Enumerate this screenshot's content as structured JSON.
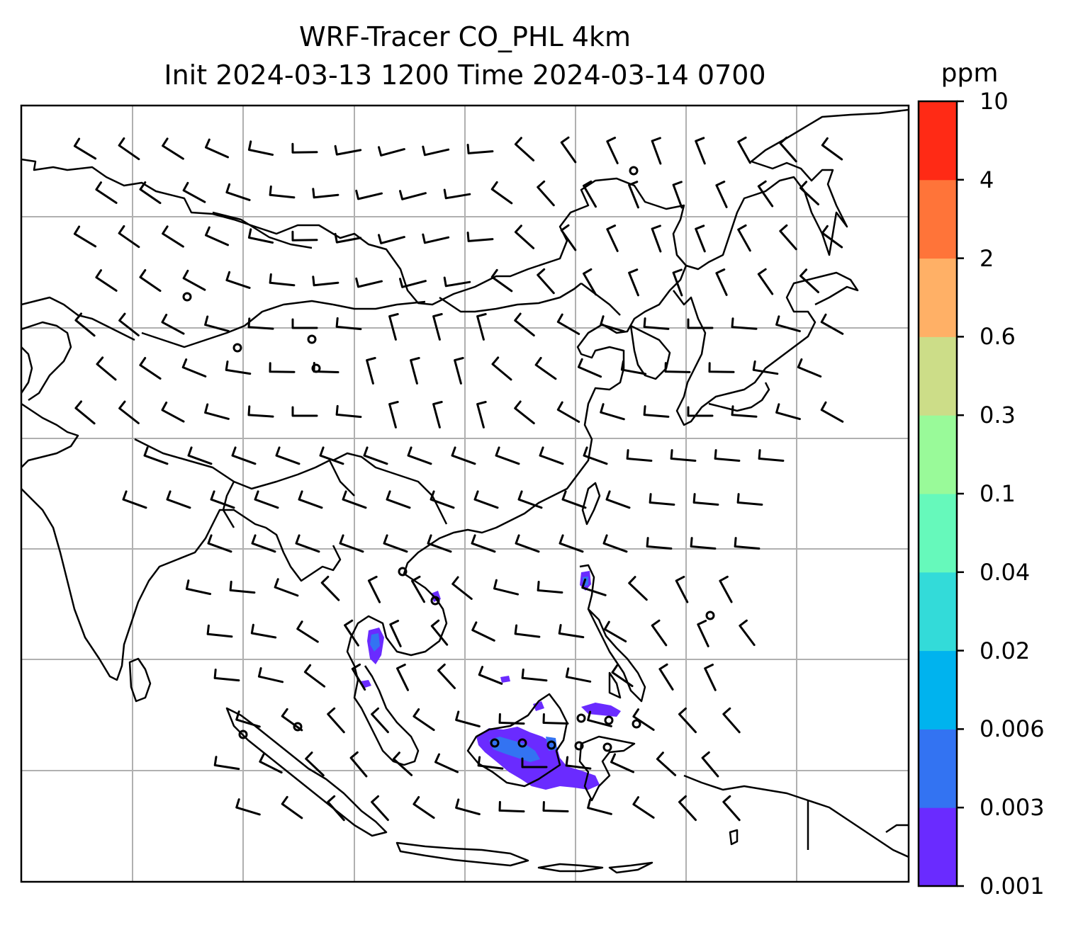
{
  "title": {
    "line1": "WRF-Tracer CO_PHL 4km",
    "line2": "Init 2024-03-13 1200 Time 2024-03-14 0700"
  },
  "colorbar": {
    "units": "ppm",
    "ticks": [
      "0.001",
      "0.003",
      "0.006",
      "0.02",
      "0.04",
      "0.1",
      "0.3",
      "0.6",
      "2",
      "4",
      "10"
    ],
    "colors": [
      "#6a2bff",
      "#3373f2",
      "#00b3ee",
      "#33dbd9",
      "#66f9bb",
      "#99fa99",
      "#ccdd88",
      "#ffb066",
      "#ff7439",
      "#ff2a15"
    ]
  },
  "map": {
    "projection": "Mercator",
    "gridlines": true,
    "coastline_color": "#000000",
    "gridline_color": "#b0b0b0",
    "wind_barbs": true,
    "tracer_color": "#6a2bff"
  }
}
